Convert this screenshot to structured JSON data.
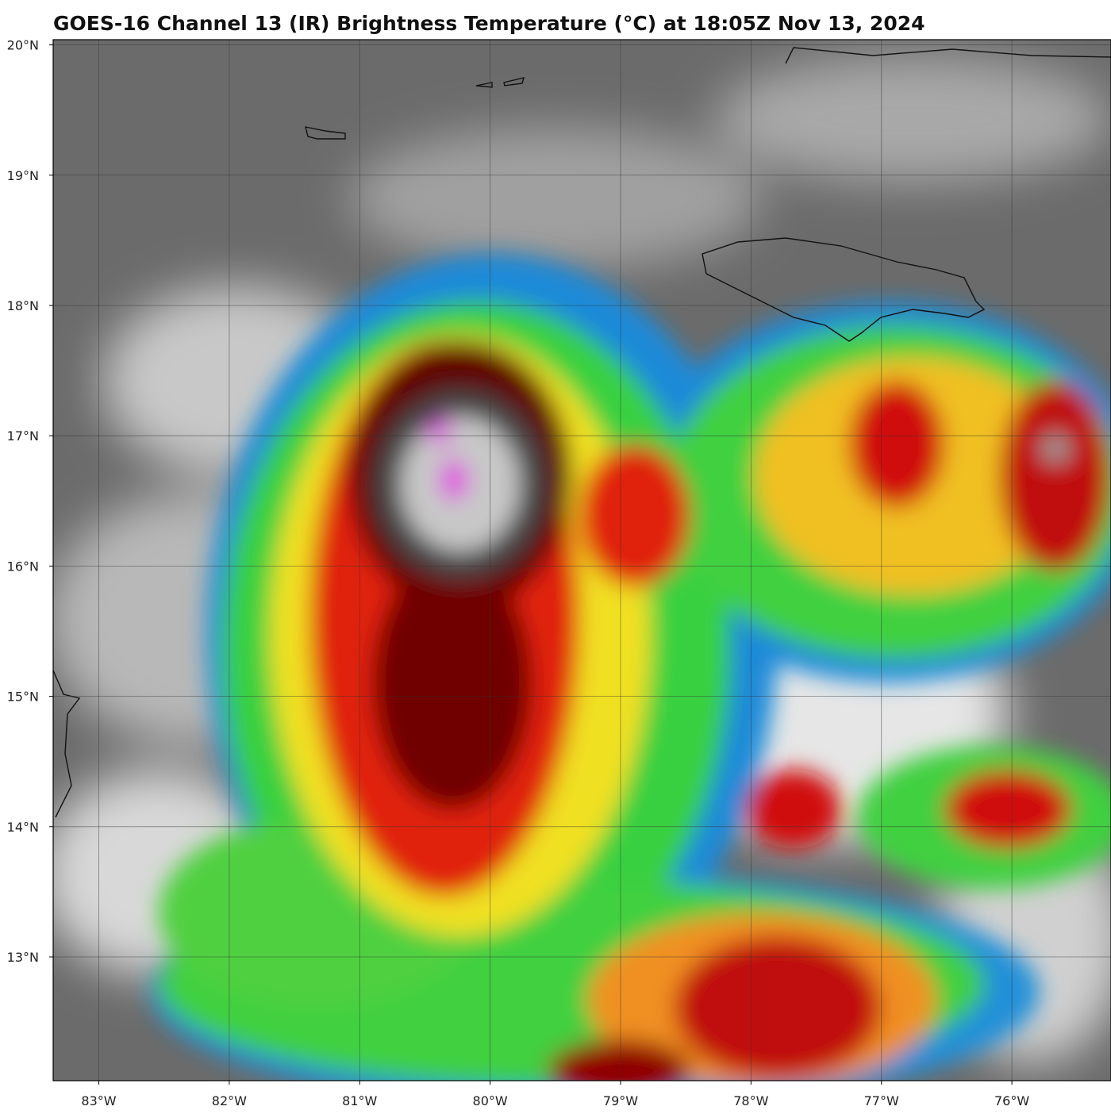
{
  "map": {
    "title": "GOES-16 Channel 13 (IR) Brightness Temperature (°C) at 18:05Z Nov 13, 2024",
    "xlim": [
      -83.35,
      -75.24
    ],
    "ylim": [
      12.05,
      20.04
    ],
    "xticks": [
      {
        "value": -83,
        "label": "83°W"
      },
      {
        "value": -82,
        "label": "82°W"
      },
      {
        "value": -81,
        "label": "81°W"
      },
      {
        "value": -80,
        "label": "80°W"
      },
      {
        "value": -79,
        "label": "79°W"
      },
      {
        "value": -78,
        "label": "78°W"
      },
      {
        "value": -77,
        "label": "77°W"
      },
      {
        "value": -76,
        "label": "76°W"
      }
    ],
    "yticks": [
      {
        "value": 20,
        "label": "20°N"
      },
      {
        "value": 19,
        "label": "19°N"
      },
      {
        "value": 18,
        "label": "18°N"
      },
      {
        "value": 17,
        "label": "17°N"
      },
      {
        "value": 16,
        "label": "16°N"
      },
      {
        "value": 15,
        "label": "15°N"
      },
      {
        "value": 14,
        "label": "14°N"
      },
      {
        "value": 13,
        "label": "13°N"
      }
    ]
  }
}
